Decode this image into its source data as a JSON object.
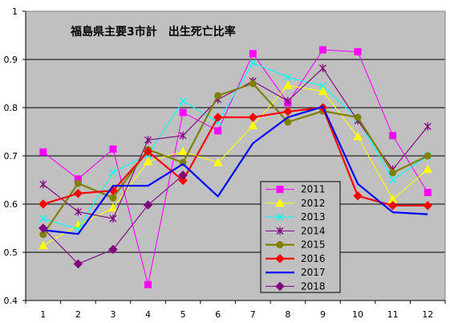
{
  "chart_data": {
    "type": "line",
    "title": "福島県主要3市計　出生死亡比率",
    "x": [
      1,
      2,
      3,
      4,
      5,
      6,
      7,
      8,
      9,
      10,
      11,
      12
    ],
    "ylim": [
      0.4,
      1.0
    ],
    "yticks": [
      "0.4",
      "0.5",
      "0.6",
      "0.7",
      "0.8",
      "0.9",
      "1"
    ],
    "xticks": [
      "1",
      "2",
      "3",
      "4",
      "5",
      "6",
      "7",
      "8",
      "9",
      "10",
      "11",
      "12"
    ],
    "grid": true,
    "legend_position": "bottom-right inside plot",
    "plot_background": "#c0c0c0",
    "series": [
      {
        "name": "2011",
        "color": "#ff00ff",
        "marker": "square",
        "values": [
          0.708,
          0.652,
          0.714,
          0.433,
          0.79,
          0.752,
          0.912,
          0.81,
          0.92,
          0.916,
          0.742,
          0.624
        ]
      },
      {
        "name": "2012",
        "color": "#ffff00",
        "marker": "triangle",
        "values": [
          0.514,
          0.556,
          0.592,
          0.688,
          0.709,
          0.686,
          0.763,
          0.846,
          0.834,
          0.74,
          0.61,
          0.672
        ]
      },
      {
        "name": "2013",
        "color": "#00ffff",
        "marker": "x",
        "values": [
          0.57,
          0.548,
          0.666,
          0.702,
          0.814,
          0.77,
          0.893,
          0.863,
          0.845,
          0.777,
          0.65,
          0.7
        ]
      },
      {
        "name": "2014",
        "color": "#800080",
        "marker": "star",
        "values": [
          0.641,
          0.584,
          0.57,
          0.733,
          0.742,
          0.817,
          0.855,
          0.814,
          0.882,
          0.773,
          0.672,
          0.761
        ]
      },
      {
        "name": "2015",
        "color": "#808000",
        "marker": "circle",
        "values": [
          0.537,
          0.643,
          0.613,
          0.713,
          0.686,
          0.825,
          0.85,
          0.77,
          0.793,
          0.78,
          0.665,
          0.7
        ]
      },
      {
        "name": "2016",
        "color": "#ff0000",
        "marker": "diamond",
        "values": [
          0.6,
          0.622,
          0.628,
          0.709,
          0.649,
          0.78,
          0.78,
          0.792,
          0.8,
          0.617,
          0.597,
          0.597
        ]
      },
      {
        "name": "2017",
        "color": "#0000ff",
        "marker": "none",
        "values": [
          0.546,
          0.538,
          0.638,
          0.638,
          0.683,
          0.616,
          0.726,
          0.78,
          0.802,
          0.642,
          0.583,
          0.579
        ]
      },
      {
        "name": "2018",
        "color": "#800080",
        "marker": "diamond",
        "values": [
          0.55,
          0.476,
          0.506,
          0.598,
          0.66,
          null,
          null,
          null,
          null,
          null,
          null,
          null
        ]
      }
    ]
  }
}
